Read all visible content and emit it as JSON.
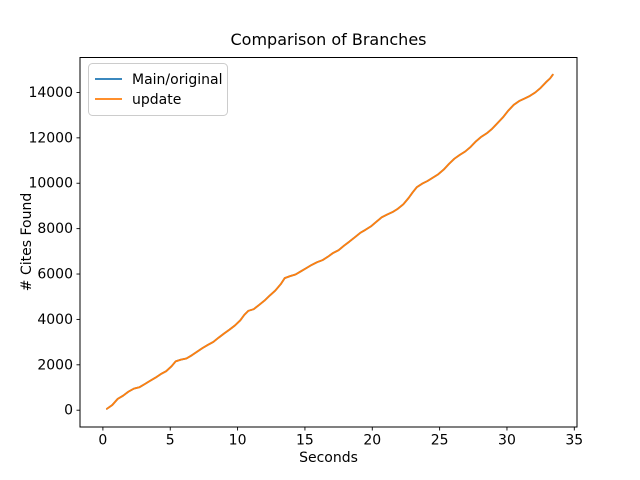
{
  "chart_data": {
    "type": "line",
    "title": "Comparison of Branches",
    "xlabel": "Seconds",
    "ylabel": "# Cites Found",
    "xlim": [
      -1.7,
      35.2
    ],
    "ylim": [
      -740,
      15540
    ],
    "x_ticks": [
      0,
      5,
      10,
      15,
      20,
      25,
      30,
      35
    ],
    "y_ticks": [
      0,
      2000,
      4000,
      6000,
      8000,
      10000,
      12000,
      14000
    ],
    "grid": false,
    "background": "#ffffff",
    "spine_color": "#000000",
    "legend": {
      "position": "upper-left",
      "border_color": "#cccccc",
      "fill": "#ffffff"
    },
    "x": [
      0.3,
      0.7,
      1.1,
      1.5,
      1.9,
      2.3,
      2.7,
      3.1,
      3.5,
      3.9,
      4.3,
      4.7,
      5.1,
      5.4,
      5.8,
      6.2,
      6.6,
      7.0,
      7.4,
      7.8,
      8.2,
      8.6,
      9.0,
      9.4,
      9.8,
      10.2,
      10.5,
      10.8,
      11.2,
      11.6,
      12.0,
      12.4,
      12.8,
      13.2,
      13.5,
      13.9,
      14.3,
      14.7,
      15.1,
      15.5,
      15.9,
      16.3,
      16.7,
      17.1,
      17.5,
      17.9,
      18.3,
      18.7,
      19.1,
      19.5,
      19.9,
      20.3,
      20.7,
      21.1,
      21.5,
      21.9,
      22.3,
      22.7,
      23.0,
      23.3,
      23.7,
      24.1,
      24.5,
      24.9,
      25.3,
      25.7,
      26.1,
      26.5,
      26.9,
      27.3,
      27.7,
      28.1,
      28.5,
      28.9,
      29.3,
      29.7,
      30.1,
      30.5,
      30.9,
      31.3,
      31.7,
      32.1,
      32.5,
      32.9,
      33.2,
      33.4
    ],
    "series": [
      {
        "name": "Main/original",
        "color": "#1f77b4",
        "values": [
          60,
          230,
          500,
          640,
          820,
          950,
          1010,
          1150,
          1290,
          1430,
          1590,
          1720,
          1940,
          2150,
          2230,
          2280,
          2420,
          2580,
          2740,
          2880,
          3010,
          3200,
          3380,
          3550,
          3730,
          3960,
          4200,
          4380,
          4450,
          4640,
          4830,
          5060,
          5270,
          5550,
          5820,
          5910,
          5980,
          6120,
          6260,
          6400,
          6520,
          6610,
          6760,
          6930,
          7050,
          7250,
          7430,
          7620,
          7810,
          7950,
          8100,
          8300,
          8500,
          8620,
          8730,
          8880,
          9070,
          9350,
          9600,
          9820,
          9980,
          10100,
          10250,
          10400,
          10600,
          10850,
          11080,
          11250,
          11400,
          11600,
          11850,
          12050,
          12200,
          12400,
          12650,
          12900,
          13200,
          13450,
          13620,
          13730,
          13850,
          14000,
          14200,
          14450,
          14620,
          14780
        ]
      },
      {
        "name": "update",
        "color": "#ff7f0e",
        "values": [
          60,
          230,
          500,
          640,
          820,
          950,
          1010,
          1150,
          1290,
          1430,
          1590,
          1720,
          1940,
          2150,
          2230,
          2280,
          2420,
          2580,
          2740,
          2880,
          3010,
          3200,
          3380,
          3550,
          3730,
          3960,
          4200,
          4380,
          4450,
          4640,
          4830,
          5060,
          5270,
          5550,
          5820,
          5910,
          5980,
          6120,
          6260,
          6400,
          6520,
          6610,
          6760,
          6930,
          7050,
          7250,
          7430,
          7620,
          7810,
          7950,
          8100,
          8300,
          8500,
          8620,
          8730,
          8880,
          9070,
          9350,
          9600,
          9820,
          9980,
          10100,
          10250,
          10400,
          10600,
          10850,
          11080,
          11250,
          11400,
          11600,
          11850,
          12050,
          12200,
          12400,
          12650,
          12900,
          13200,
          13450,
          13620,
          13730,
          13850,
          14000,
          14200,
          14450,
          14620,
          14780
        ]
      }
    ]
  }
}
